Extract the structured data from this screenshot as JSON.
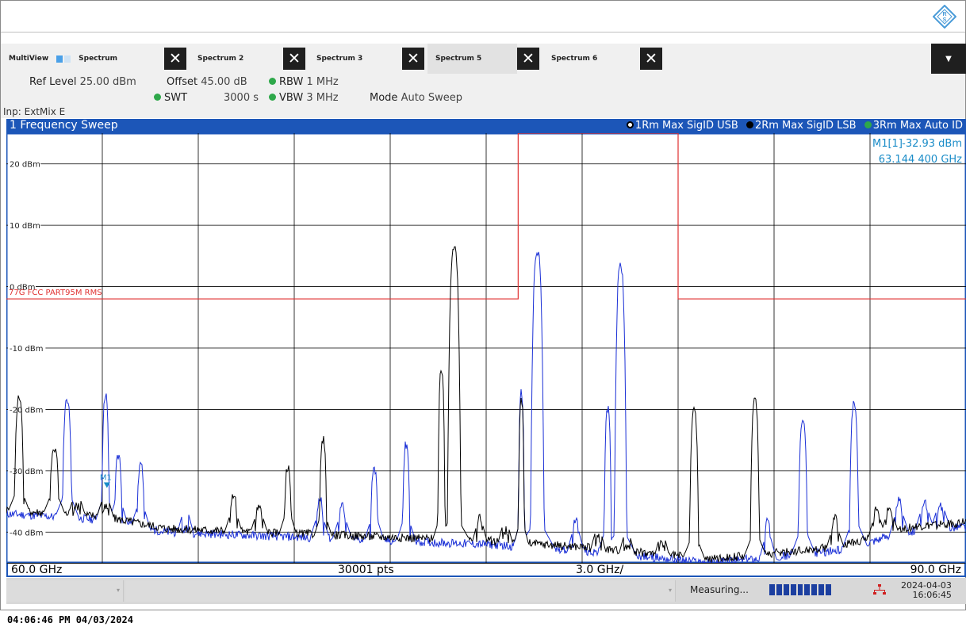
{
  "tabs": [
    {
      "label": "MultiView",
      "active": false
    },
    {
      "label": "Spectrum",
      "active": false
    },
    {
      "label": "Spectrum 2",
      "active": false
    },
    {
      "label": "Spectrum 3",
      "active": false
    },
    {
      "label": "Spectrum 5",
      "active": true
    },
    {
      "label": "Spectrum 6",
      "active": false
    }
  ],
  "params": {
    "ref_level_label": "Ref Level",
    "ref_level_value": "25.00 dBm",
    "offset_label": "Offset",
    "offset_value": "45.00 dB",
    "rbw_label": "RBW",
    "rbw_value": "1 MHz",
    "swt_label": "SWT",
    "swt_value": "3000 s",
    "vbw_label": "VBW",
    "vbw_value": "3 MHz",
    "mode_label": "Mode",
    "mode_value": "Auto Sweep",
    "input": "Inp: ExtMix E"
  },
  "sweep": {
    "title": "1 Frequency Sweep",
    "traces": [
      {
        "label": "1Rm Max SigID USB",
        "color": "#1a2fd6"
      },
      {
        "label": "2Rm Max SigID LSB",
        "color": "#000000"
      },
      {
        "label": "3Rm Max Auto ID",
        "color": "#2ea84a"
      }
    ]
  },
  "marker": {
    "label": "M1[1]",
    "level": "-32.93 dBm",
    "freq": "63.144 400 GHz",
    "tag": "M1"
  },
  "limit_line_label": "77G FCC PART95M RMS",
  "bottom": {
    "start": "60.0 GHz",
    "points": "30001 pts",
    "span_per_div": "3.0 GHz/",
    "stop": "90.0 GHz"
  },
  "status": {
    "measuring": "Measuring...",
    "date": "2024-04-03",
    "time": "16:06:45"
  },
  "footer": "04:06:46 PM  04/03/2024",
  "chart_data": {
    "type": "line",
    "xlabel": "",
    "ylabel": "",
    "xlim": [
      60.0,
      90.0
    ],
    "ylim": [
      -45,
      25
    ],
    "y_ticks": [
      "20 dBm",
      "10 dBm",
      "0 dBm",
      "-10 dBm",
      "-20 dBm",
      "-30 dBm",
      "-40 dBm"
    ],
    "y_tick_values": [
      20,
      10,
      0,
      -10,
      -20,
      -30,
      -40
    ],
    "grid": true,
    "limit_line": {
      "x": [
        60,
        76,
        76,
        81,
        81,
        90
      ],
      "y": [
        -2,
        -2,
        25,
        25,
        -2,
        -2
      ],
      "color": "#e03030"
    },
    "noise_floor": {
      "x": [
        60,
        63,
        65,
        70,
        75,
        78,
        80,
        82,
        84,
        86,
        88,
        90
      ],
      "y": [
        -37,
        -38,
        -40,
        -41,
        -42,
        -43,
        -44,
        -45,
        -44,
        -43,
        -40,
        -39
      ]
    },
    "series": [
      {
        "name": "1Rm Max SigID USB",
        "color": "#1a2fd6",
        "peaks": [
          {
            "x": 61.9,
            "y": -17.5,
            "w": 0.15
          },
          {
            "x": 63.1,
            "y": -17.0,
            "w": 0.12
          },
          {
            "x": 63.5,
            "y": -27.0,
            "w": 0.12
          },
          {
            "x": 64.2,
            "y": -28.5,
            "w": 0.12
          },
          {
            "x": 65.6,
            "y": -39.0,
            "w": 0.1
          },
          {
            "x": 69.8,
            "y": -34.0,
            "w": 0.12
          },
          {
            "x": 70.5,
            "y": -35.0,
            "w": 0.12
          },
          {
            "x": 71.5,
            "y": -29.0,
            "w": 0.12
          },
          {
            "x": 72.5,
            "y": -25.0,
            "w": 0.12
          },
          {
            "x": 76.1,
            "y": -16.5,
            "w": 0.1
          },
          {
            "x": 76.6,
            "y": 6.5,
            "w": 0.22
          },
          {
            "x": 77.8,
            "y": -37.0,
            "w": 0.1
          },
          {
            "x": 78.8,
            "y": -19.0,
            "w": 0.12
          },
          {
            "x": 79.2,
            "y": 4.0,
            "w": 0.2
          },
          {
            "x": 83.8,
            "y": -37.0,
            "w": 0.1
          },
          {
            "x": 84.9,
            "y": -21.0,
            "w": 0.15
          },
          {
            "x": 86.5,
            "y": -18.5,
            "w": 0.15
          },
          {
            "x": 87.9,
            "y": -34.0,
            "w": 0.12
          },
          {
            "x": 88.7,
            "y": -34.5,
            "w": 0.12
          },
          {
            "x": 89.2,
            "y": -35.0,
            "w": 0.12
          }
        ]
      },
      {
        "name": "2Rm Max SigID LSB",
        "color": "#000000",
        "peaks": [
          {
            "x": 60.4,
            "y": -17.5,
            "w": 0.15
          },
          {
            "x": 61.5,
            "y": -25.5,
            "w": 0.15
          },
          {
            "x": 62.2,
            "y": -35.0,
            "w": 0.12
          },
          {
            "x": 63.1,
            "y": -35.0,
            "w": 0.12
          },
          {
            "x": 67.1,
            "y": -33.0,
            "w": 0.12
          },
          {
            "x": 67.9,
            "y": -35.0,
            "w": 0.12
          },
          {
            "x": 68.8,
            "y": -29.0,
            "w": 0.12
          },
          {
            "x": 69.9,
            "y": -24.0,
            "w": 0.12
          },
          {
            "x": 73.6,
            "y": -13.0,
            "w": 0.12
          },
          {
            "x": 74.0,
            "y": 7.0,
            "w": 0.22
          },
          {
            "x": 74.8,
            "y": -37.0,
            "w": 0.1
          },
          {
            "x": 75.6,
            "y": -39.0,
            "w": 0.1
          },
          {
            "x": 76.1,
            "y": -18.0,
            "w": 0.1
          },
          {
            "x": 78.5,
            "y": -40.0,
            "w": 0.1
          },
          {
            "x": 79.4,
            "y": -41.5,
            "w": 0.1
          },
          {
            "x": 80.5,
            "y": -41.0,
            "w": 0.1
          },
          {
            "x": 81.5,
            "y": -19.5,
            "w": 0.15
          },
          {
            "x": 83.4,
            "y": -18.0,
            "w": 0.15
          },
          {
            "x": 85.9,
            "y": -37.0,
            "w": 0.12
          },
          {
            "x": 87.2,
            "y": -35.5,
            "w": 0.12
          },
          {
            "x": 87.6,
            "y": -35.0,
            "w": 0.12
          }
        ]
      }
    ]
  }
}
